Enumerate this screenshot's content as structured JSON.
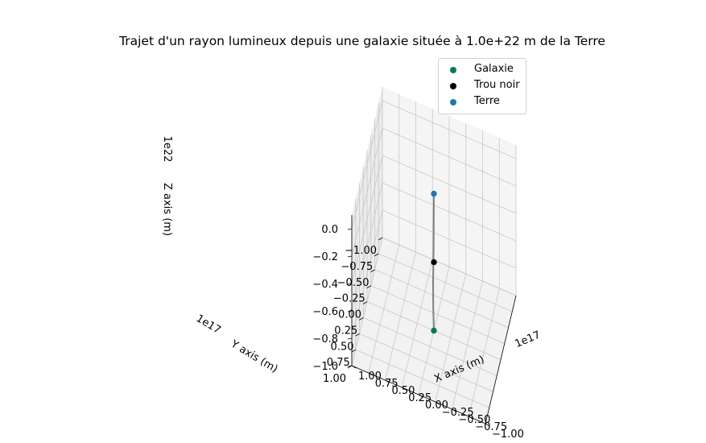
{
  "chart_data": {
    "type": "scatter",
    "projection": "3d",
    "title": "Trajet d'un rayon lumineux depuis une galaxie située à 1.0e+22 m de la Terre",
    "xlabel": "X axis (m)",
    "ylabel": "Y axis (m)",
    "zlabel": "Z axis (m)",
    "x_offset_label": "1e17",
    "y_offset_label": "1e17",
    "z_offset_label": "1e22",
    "xlim": [
      -1.0,
      1.0
    ],
    "ylim": [
      -1.0,
      1.0
    ],
    "zlim": [
      -1.0,
      0.1
    ],
    "x_ticks": [
      "−1.00",
      "−0.75",
      "−0.50",
      "−0.25",
      "0.00",
      "0.25",
      "0.50",
      "0.75",
      "1.00"
    ],
    "y_ticks": [
      "−1.00",
      "−0.75",
      "−0.50",
      "−0.25",
      "0.00",
      "0.25",
      "0.50",
      "0.75",
      "1.00"
    ],
    "z_ticks": [
      "0.0",
      "−0.2",
      "−0.4",
      "−0.6",
      "−0.8",
      "−1.0"
    ],
    "grid": true,
    "legend_position": "top-right",
    "series": [
      {
        "name": "Galaxie",
        "color": "#007a5e",
        "points": [
          {
            "x": 0,
            "y": 0,
            "z": -1.0
          }
        ]
      },
      {
        "name": "Trou noir",
        "color": "#000000",
        "points": [
          {
            "x": 0,
            "y": 0,
            "z": -0.5
          }
        ]
      },
      {
        "name": "Terre",
        "color": "#1f77b4",
        "points": [
          {
            "x": 0,
            "y": 0,
            "z": 0.0
          }
        ]
      }
    ],
    "path": {
      "color": "#808080",
      "points": [
        {
          "x": 0,
          "y": 0,
          "z": -1.0
        },
        {
          "x": 0,
          "y": 0.04,
          "z": -0.82
        },
        {
          "x": 0,
          "y": 0.05,
          "z": -0.62
        },
        {
          "x": 0,
          "y": 0.02,
          "z": -0.4
        },
        {
          "x": 0,
          "y": 0,
          "z": 0.0
        }
      ]
    }
  }
}
